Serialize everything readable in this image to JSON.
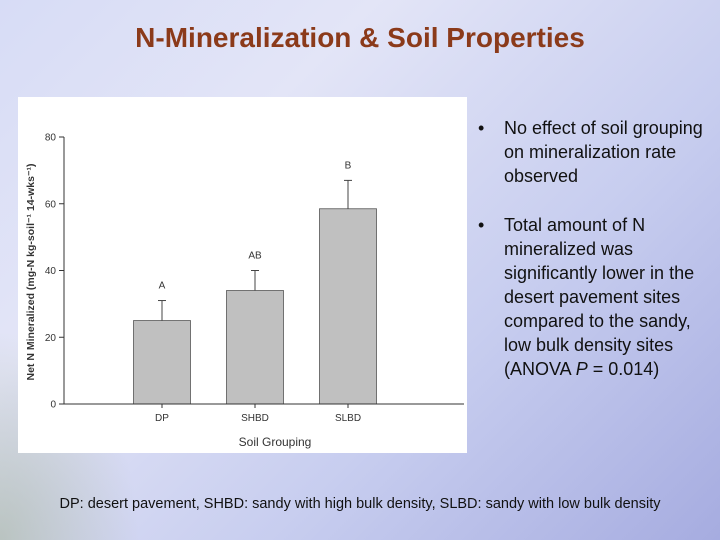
{
  "slide": {
    "title": "N-Mineralization & Soil Properties",
    "bullets": [
      {
        "pre": "No effect of soil grouping on mineralization rate observed",
        "italic": "",
        "post": ""
      },
      {
        "pre": "Total amount of N mineralized was significantly lower in the desert pavement sites compared to the sandy, low bulk density sites (ANOVA ",
        "italic": "P",
        "post": " = 0.014)"
      }
    ],
    "footnote": "DP: desert pavement, SHBD: sandy with high bulk density, SLBD: sandy with low bulk density",
    "colors": {
      "title": "#8b3a1a",
      "bar_fill": "#c0c0c0",
      "bar_stroke": "#555555"
    }
  },
  "chart_data": {
    "type": "bar",
    "categories": [
      "DP",
      "SHBD",
      "SLBD"
    ],
    "values": [
      25,
      34,
      58.5
    ],
    "error_upper": [
      31,
      40,
      67
    ],
    "significance_letters": [
      "A",
      "AB",
      "B"
    ],
    "xlabel": "Soil Grouping",
    "ylabel": "Net N Mineralized (mg-N kg-soil⁻¹ 14-wks⁻¹)",
    "ylim": [
      0,
      80
    ],
    "yticks": [
      0,
      20,
      40,
      60,
      80
    ],
    "grid": false
  }
}
